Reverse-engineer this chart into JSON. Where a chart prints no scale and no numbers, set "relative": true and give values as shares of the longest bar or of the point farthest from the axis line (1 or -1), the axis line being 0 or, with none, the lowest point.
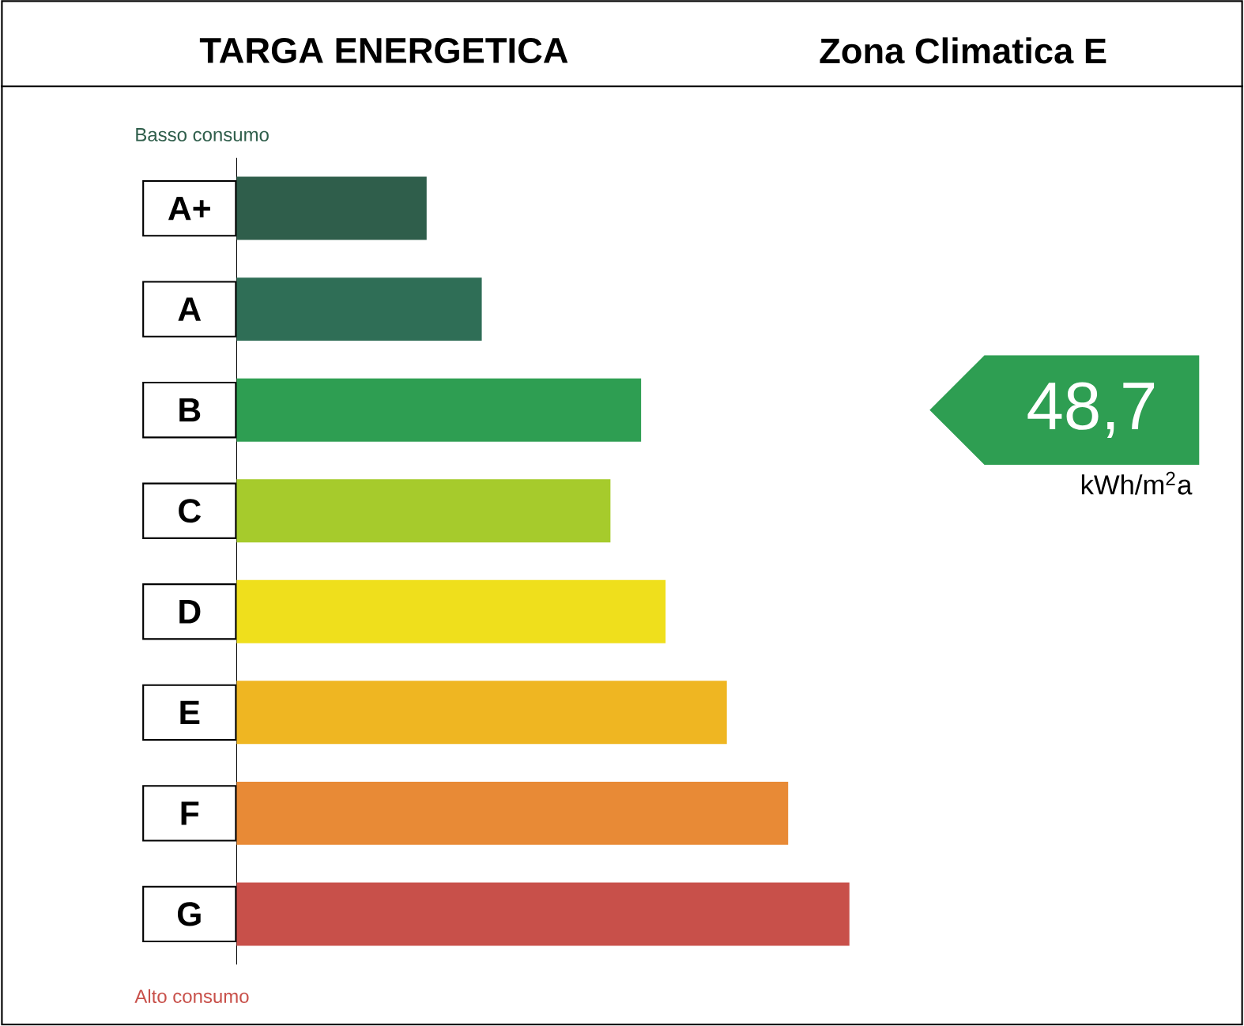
{
  "chart_data": {
    "type": "bar",
    "orientation": "horizontal",
    "relative": true,
    "title": "TARGA ENERGETICA",
    "subtitle": "Zona Climatica E",
    "categories": [
      "A+",
      "A",
      "B",
      "C",
      "D",
      "E",
      "F",
      "G"
    ],
    "values": [
      0.31,
      0.4,
      0.66,
      0.61,
      0.7,
      0.8,
      0.9,
      1
    ],
    "colors": [
      "#2f5e4b",
      "#2f6e56",
      "#2e9e52",
      "#a6cb2c",
      "#efdf1c",
      "#efb622",
      "#e88a36",
      "#c8504a"
    ],
    "annotations": [
      "Basso consumo",
      "Alto consumo",
      "kWh/m$^{2}$a",
      "48,7"
    ]
  }
}
